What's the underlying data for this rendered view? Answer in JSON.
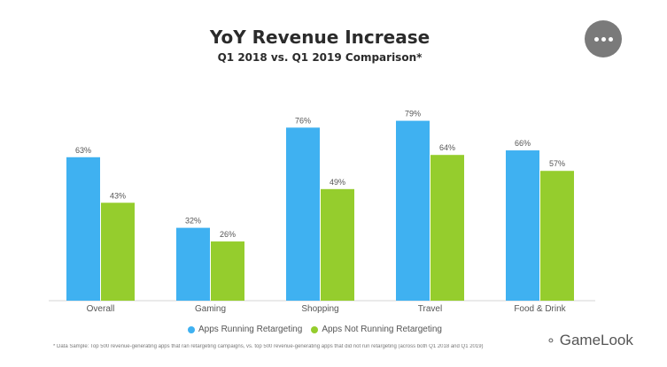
{
  "header": {
    "title": "YoY Revenue Increase",
    "subtitle": "Q1 2018 vs. Q1 2019 Comparison*"
  },
  "more_button": {
    "icon": "more-dots-icon"
  },
  "legend": {
    "items": [
      {
        "label": "Apps Running Retargeting",
        "color": "#3fb1f1"
      },
      {
        "label": "Apps Not Running Retargeting",
        "color": "#95cd2d"
      }
    ]
  },
  "footnote": "* Data Sample: Top 500 revenue-generating apps that ran retargeting campaigns, vs. top 500 revenue-generating apps that did not run retargeting (across both Q1 2018 and Q1 2019)",
  "watermark": {
    "text": "GameLook",
    "icon": "wechat-icon"
  },
  "chart_data": {
    "type": "bar",
    "title": "YoY Revenue Increase",
    "subtitle": "Q1 2018 vs. Q1 2019 Comparison*",
    "categories": [
      "Overall",
      "Gaming",
      "Shopping",
      "Travel",
      "Food & Drink"
    ],
    "series": [
      {
        "name": "Apps Running Retargeting",
        "values": [
          63,
          32,
          76,
          79,
          66
        ],
        "color": "#3fb1f1"
      },
      {
        "name": "Apps Not Running Retargeting",
        "values": [
          43,
          26,
          49,
          64,
          57
        ],
        "color": "#95cd2d"
      }
    ],
    "value_suffix": "%",
    "ylim": [
      0,
      100
    ],
    "grid": false,
    "legend_position": "bottom"
  }
}
